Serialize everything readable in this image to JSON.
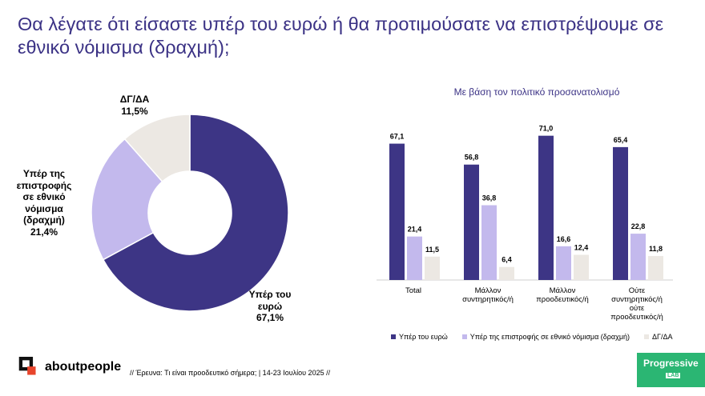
{
  "title": "Θα λέγατε ότι είσαστε υπέρ του ευρώ ή θα προτιμούσατε να επιστρέψουμε σε εθνικό νόμισμα (δραχμή);",
  "chart_data": [
    {
      "type": "pie",
      "variant": "donut",
      "slices": [
        {
          "label_lines": [
            "Υπέρ του",
            "ευρώ"
          ],
          "value": 67.1,
          "value_label": "67,1%",
          "color": "#3d3585"
        },
        {
          "label_lines": [
            "Υπέρ της",
            "επιστροφής",
            "σε εθνικό",
            "νόμισμα",
            "(δραχμή)"
          ],
          "value": 21.4,
          "value_label": "21,4%",
          "color": "#c3b9ed"
        },
        {
          "label_lines": [
            "ΔΓ/ΔΑ"
          ],
          "value": 11.5,
          "value_label": "11,5%",
          "color": "#ece8e3"
        }
      ]
    },
    {
      "type": "bar",
      "title": "Με βάση τον πολιτικό προσανατολισμό",
      "categories": [
        [
          "Total"
        ],
        [
          "Μάλλον",
          "συντηρητικός/ή"
        ],
        [
          "Μάλλον",
          "προοδευτικός/ή"
        ],
        [
          "Ούτε",
          "συντηρητικός/ή",
          "ούτε",
          "προοδευτικός/ή"
        ]
      ],
      "series": [
        {
          "name": "Υπέρ του ευρώ",
          "color": "#3d3585",
          "values": [
            67.1,
            56.8,
            71.0,
            65.4
          ],
          "labels": [
            "67,1",
            "56,8",
            "71,0",
            "65,4"
          ]
        },
        {
          "name": "Υπέρ της επιστροφής σε εθνικό νόμισμα (δραχμή)",
          "color": "#c3b9ed",
          "values": [
            21.4,
            36.8,
            16.6,
            22.8
          ],
          "labels": [
            "21,4",
            "36,8",
            "16,6",
            "22,8"
          ]
        },
        {
          "name": "ΔΓ/ΔΑ",
          "color": "#ece8e3",
          "values": [
            11.5,
            6.4,
            12.4,
            11.8
          ],
          "labels": [
            "11,5",
            "6,4",
            "12,4",
            "11,8"
          ]
        }
      ],
      "ylim": [
        0,
        80
      ],
      "grid": false,
      "legend": "bottom"
    }
  ],
  "footer": {
    "brand": "aboutpeople",
    "note": "// Έρευνα: Τι είναι προοδευτικό σήμερα; | 14-23 Ιουλίου 2025 //",
    "partner_line1": "Progressive",
    "partner_line2": "LAB"
  }
}
